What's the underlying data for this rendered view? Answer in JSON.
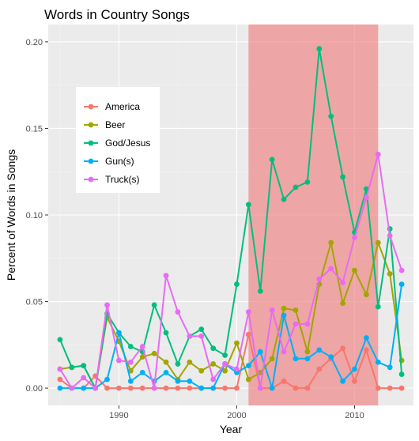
{
  "chart_data": {
    "type": "line",
    "title": "Words in Country Songs",
    "xlabel": "Year",
    "ylabel": "Percent of Words in Songs",
    "xlim": [
      1984,
      2015
    ],
    "ylim": [
      -0.01,
      0.21
    ],
    "x_ticks": [
      1990,
      2000,
      2010
    ],
    "y_ticks": [
      0.0,
      0.05,
      0.1,
      0.15,
      0.2
    ],
    "y_tick_labels": [
      "0.00",
      "0.05",
      "0.10",
      "0.15",
      "0.20"
    ],
    "grid": true,
    "legend_position": "top-left inside",
    "highlight": {
      "x_start": 2001,
      "x_end": 2012,
      "color": "#f08080",
      "opacity": 0.65
    },
    "x": [
      1985,
      1986,
      1987,
      1988,
      1989,
      1990,
      1991,
      1992,
      1993,
      1994,
      1995,
      1996,
      1997,
      1998,
      1999,
      2000,
      2001,
      2002,
      2003,
      2004,
      2005,
      2006,
      2007,
      2008,
      2009,
      2010,
      2011,
      2012,
      2013,
      2014
    ],
    "series": [
      {
        "name": "America",
        "color": "#F8766D",
        "values": [
          0.005,
          0.0,
          0.0,
          0.007,
          0.0,
          0.0,
          0.0,
          0.0,
          0.0,
          0.0,
          0.0,
          0.0,
          0.0,
          0.0,
          0.0,
          0.0,
          0.031,
          0.0,
          0.0,
          0.004,
          0.0,
          0.0,
          0.011,
          0.017,
          0.023,
          0.004,
          0.022,
          0.0,
          0.0,
          0.0
        ]
      },
      {
        "name": "Beer",
        "color": "#A3A500",
        "values": [
          0.011,
          0.012,
          0.013,
          0.0,
          0.041,
          0.027,
          0.01,
          0.018,
          0.02,
          0.015,
          0.005,
          0.015,
          0.01,
          0.014,
          0.01,
          0.026,
          0.005,
          0.009,
          0.017,
          0.046,
          0.045,
          0.021,
          0.06,
          0.084,
          0.049,
          0.068,
          0.054,
          0.084,
          0.066,
          0.016
        ]
      },
      {
        "name": "God/Jesus",
        "color": "#00BF7D",
        "values": [
          0.028,
          0.012,
          0.013,
          0.0,
          0.043,
          0.032,
          0.024,
          0.021,
          0.048,
          0.032,
          0.014,
          0.03,
          0.034,
          0.023,
          0.019,
          0.06,
          0.106,
          0.056,
          0.132,
          0.109,
          0.116,
          0.119,
          0.196,
          0.157,
          0.122,
          0.09,
          0.115,
          0.047,
          0.092,
          0.008
        ]
      },
      {
        "name": "Gun(s)",
        "color": "#00B0F6",
        "values": [
          0.0,
          0.0,
          0.0,
          0.0,
          0.005,
          0.032,
          0.004,
          0.009,
          0.004,
          0.009,
          0.004,
          0.004,
          0.0,
          0.0,
          0.014,
          0.009,
          0.013,
          0.021,
          0.0,
          0.042,
          0.017,
          0.017,
          0.022,
          0.018,
          0.004,
          0.011,
          0.029,
          0.015,
          0.012,
          0.06
        ]
      },
      {
        "name": "Truck(s)",
        "color": "#E76BF3",
        "values": [
          0.011,
          0.0,
          0.006,
          0.0,
          0.048,
          0.016,
          0.015,
          0.024,
          0.0,
          0.065,
          0.044,
          0.03,
          0.03,
          0.005,
          0.014,
          0.011,
          0.044,
          0.0,
          0.045,
          0.021,
          0.037,
          0.037,
          0.063,
          0.069,
          0.061,
          0.087,
          0.11,
          0.135,
          0.088,
          0.068
        ]
      }
    ]
  }
}
